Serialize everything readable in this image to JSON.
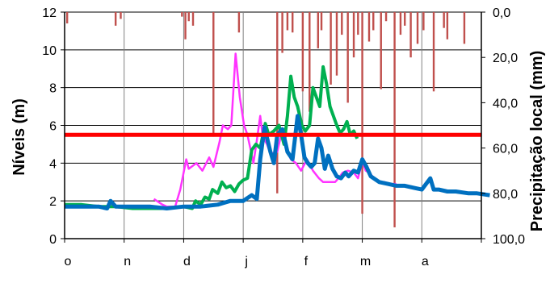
{
  "chart_data": {
    "type": "line",
    "xlabel": "",
    "categories": [
      "o",
      "n",
      "d",
      "j",
      "f",
      "m",
      "a"
    ],
    "y_left": {
      "label": "Níveis (m)",
      "ylim": [
        0,
        12
      ],
      "ticks": [
        "0",
        "2",
        "4",
        "6",
        "8",
        "10",
        "12"
      ]
    },
    "y_right": {
      "label": "Precipitação local (mm)",
      "ylim": [
        0,
        100
      ],
      "inverted": true,
      "ticks": [
        "0,0",
        "20,0",
        "40,0",
        "60,0",
        "80,0",
        "100,0"
      ]
    },
    "grid": true,
    "threshold": {
      "value": 5.5,
      "color": "#ff0000"
    },
    "precip_bars": {
      "color": "#c0504d",
      "x": [
        0.3,
        6.0,
        6.6,
        13.8,
        14.2,
        14.6,
        15.1,
        17.5,
        20.5,
        25.0,
        25.6,
        26.2,
        26.8,
        28.0,
        28.8,
        29.8,
        30.2,
        31.3,
        32.0,
        32.6,
        33.3,
        34.0,
        34.5,
        35.0,
        35.8,
        36.3,
        37.2,
        37.8,
        38.8,
        39.5,
        40.0,
        40.7,
        41.5,
        42.2,
        43.4,
        44.6,
        45.0,
        47.0
      ],
      "mm": [
        5,
        6,
        3,
        2,
        12,
        4,
        6,
        55,
        9,
        80,
        18,
        8,
        9,
        35,
        44,
        16,
        8,
        32,
        28,
        10,
        40,
        20,
        10,
        89,
        13,
        8,
        34,
        4,
        95,
        10,
        6,
        20,
        14,
        8,
        35,
        7,
        12,
        14
      ]
    },
    "series": [
      {
        "color": "#ff33ff",
        "x": [
          0,
          10.5,
          11.5,
          12,
          13,
          13.6,
          14.3,
          14.6,
          15.5,
          16.2,
          17.0,
          17.5,
          18.2,
          18.6,
          19.2,
          19.6,
          20.1,
          20.6,
          21.1,
          21.5,
          22.2,
          22.6,
          23.0,
          23.3,
          23.8,
          24.2,
          25.0,
          25.6,
          26.1,
          26.6,
          27.2,
          27.8,
          28.5,
          29.2,
          29.9,
          30.4,
          31.0,
          31.4,
          31.8,
          32.2,
          32.7,
          33.3,
          34.0,
          34.5,
          35.0,
          35.4,
          35.8,
          36.4,
          37.0,
          37.6,
          38.2,
          39.0
        ],
        "values": [
          null,
          2.1,
          1.8,
          1.7,
          1.7,
          2.6,
          4.2,
          3.7,
          4.0,
          3.6,
          4.3,
          3.8,
          5.1,
          6.0,
          5.8,
          6.0,
          9.8,
          7.5,
          6.0,
          5.5,
          4.0,
          5.2,
          6.5,
          5.4,
          5.0,
          4.5,
          4.6,
          5.8,
          4.8,
          4.2,
          4.0,
          3.6,
          4.2,
          3.6,
          3.2,
          3.0,
          3.0,
          3.0,
          3.0,
          3.2,
          3.5,
          3.6,
          3.5,
          3.2,
          4.1,
          3.6,
          3.5,
          3.2,
          3.0,
          3.0,
          2.9,
          2.9
        ]
      },
      {
        "color": "#00b050",
        "x": [
          0,
          2,
          4,
          6,
          8,
          10,
          12,
          14,
          15.0,
          15.4,
          16.0,
          16.5,
          17.0,
          17.4,
          18.0,
          18.5,
          19.0,
          19.5,
          20.0,
          20.5,
          21.0,
          21.5,
          22.0,
          22.5,
          23.0,
          23.6,
          24.0,
          24.6,
          25.2,
          25.8,
          26.2,
          26.6,
          27.0,
          27.4,
          27.9,
          28.3,
          28.8,
          29.2,
          29.6,
          30.0,
          30.4,
          30.8,
          31.2,
          31.6,
          32.0,
          32.4,
          32.8,
          33.2,
          33.6,
          34.0,
          34.4,
          35.0
        ],
        "values": [
          1.8,
          1.8,
          1.7,
          1.7,
          1.6,
          1.6,
          1.6,
          1.7,
          1.6,
          2.0,
          1.8,
          2.2,
          2.1,
          2.6,
          2.4,
          3.0,
          2.7,
          2.8,
          2.5,
          2.9,
          3.1,
          3.2,
          4.7,
          5.0,
          4.8,
          6.1,
          5.5,
          5.7,
          6.0,
          5.0,
          6.5,
          8.6,
          7.5,
          7.0,
          6.0,
          5.7,
          6.0,
          8.0,
          7.5,
          7.0,
          9.1,
          8.2,
          7.0,
          6.5,
          6.0,
          5.6,
          5.8,
          6.2,
          5.5,
          5.7,
          5.3,
          null
        ]
      },
      {
        "color": "#0070c0",
        "x": [
          0,
          2,
          4,
          5,
          5.4,
          6,
          8,
          10,
          12,
          14,
          16,
          18,
          19.5,
          21.0,
          22.0,
          22.6,
          23.0,
          23.5,
          24.2,
          24.6,
          25.0,
          25.6,
          26.2,
          26.8,
          27.4,
          27.8,
          28.2,
          28.6,
          29.0,
          29.4,
          29.8,
          30.2,
          30.6,
          31.0,
          31.5,
          32.0,
          32.5,
          33.0,
          33.4,
          34.0,
          34.5,
          35.0,
          35.5,
          36.0,
          37.0,
          38.0,
          39.0,
          40.0,
          41.0,
          42.0,
          43.0,
          43.4,
          44.0,
          45.0,
          46.0,
          47.5,
          48.5,
          50.0
        ],
        "values": [
          1.7,
          1.7,
          1.7,
          1.6,
          2.0,
          1.7,
          1.7,
          1.7,
          1.6,
          1.7,
          1.7,
          1.8,
          2.0,
          2.0,
          2.3,
          2.1,
          4.2,
          5.9,
          4.6,
          4.0,
          5.5,
          5.8,
          4.6,
          4.2,
          6.5,
          5.5,
          4.3,
          4.0,
          3.8,
          4.0,
          5.3,
          4.8,
          3.7,
          4.4,
          3.7,
          3.3,
          3.2,
          3.5,
          3.3,
          3.6,
          3.5,
          4.2,
          3.8,
          3.3,
          3.0,
          2.9,
          2.8,
          2.8,
          2.7,
          2.6,
          3.2,
          2.6,
          2.6,
          2.5,
          2.5,
          2.4,
          2.4,
          2.3
        ]
      }
    ]
  }
}
